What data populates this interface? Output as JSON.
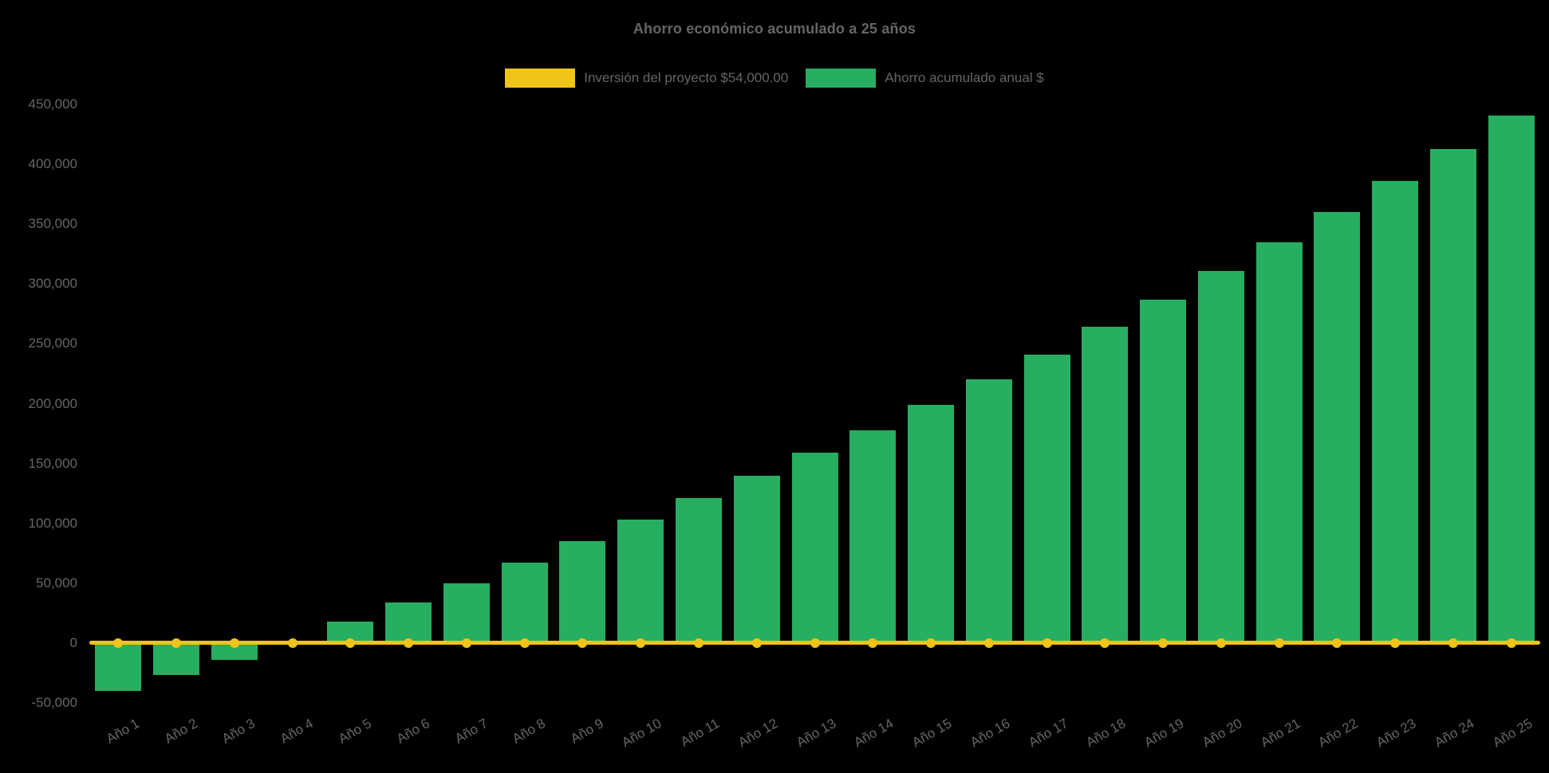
{
  "page": {
    "background": "#000000",
    "text_color": "#666666"
  },
  "chart_data": {
    "type": "bar",
    "title": "Ahorro económico acumulado a 25 años",
    "legend_position": "top",
    "grid": false,
    "background": "#000000",
    "text_color": "#666666",
    "categories": [
      "Año 1",
      "Año 2",
      "Año 3",
      "Año 4",
      "Año 5",
      "Año 6",
      "Año 7",
      "Año 8",
      "Año 9",
      "Año 10",
      "Año 11",
      "Año 12",
      "Año 13",
      "Año 14",
      "Año 15",
      "Año 16",
      "Año 17",
      "Año 18",
      "Año 19",
      "Año 20",
      "Año 21",
      "Año 22",
      "Año 23",
      "Año 24",
      "Año 25"
    ],
    "y_axis": {
      "min": -50000,
      "max": 450000,
      "step": 50000,
      "tick_labels": [
        "450,000",
        "400,000",
        "350,000",
        "300,000",
        "250,000",
        "200,000",
        "150,000",
        "100,000",
        "50,000",
        "0",
        "-50,000"
      ]
    },
    "series": [
      {
        "name": "Inversión del proyecto $54,000.00",
        "type": "line",
        "color": "#F0C419",
        "values": [
          0,
          0,
          0,
          0,
          0,
          0,
          0,
          0,
          0,
          0,
          0,
          0,
          0,
          0,
          0,
          0,
          0,
          0,
          0,
          0,
          0,
          0,
          0,
          0,
          0
        ]
      },
      {
        "name": "Ahorro acumulado anual $",
        "type": "bar",
        "color": "#27AE60",
        "values": [
          -40000,
          -27000,
          -14000,
          2000,
          18000,
          34000,
          50000,
          67000,
          85000,
          103000,
          121000,
          140000,
          159000,
          178000,
          199000,
          220000,
          241000,
          264000,
          287000,
          311000,
          335000,
          360000,
          386000,
          413000,
          441000
        ]
      }
    ]
  }
}
